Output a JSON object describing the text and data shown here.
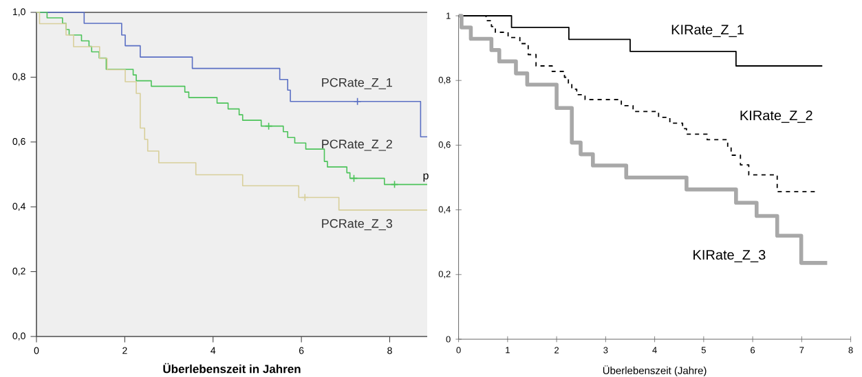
{
  "chart_data": [
    {
      "type": "step",
      "xlabel": "Überlebenszeit in Jahren",
      "xlim": [
        0,
        8.85
      ],
      "ylim": [
        0,
        1
      ],
      "xticks": [
        0,
        2,
        4,
        6,
        8
      ],
      "yticks": [
        {
          "value": 0,
          "label": "0,0"
        },
        {
          "value": 0.2,
          "label": "0,2"
        },
        {
          "value": 0.4,
          "label": "0,4"
        },
        {
          "value": 0.6,
          "label": "0,6"
        },
        {
          "value": 0.8,
          "label": "0,8"
        },
        {
          "value": 1,
          "label": "1,0"
        }
      ],
      "series": [
        {
          "name": "PCRate_Z_1",
          "color": "#5a6fc4",
          "x": [
            0,
            1.08,
            1.93,
            2.01,
            2.35,
            3.53,
            5.51,
            5.69,
            5.75,
            8.7,
            8.85
          ],
          "values": [
            1,
            0.966,
            0.93,
            0.897,
            0.862,
            0.827,
            0.793,
            0.76,
            0.725,
            0.616,
            0.616
          ]
        },
        {
          "name": "PCRate_Z_2",
          "color": "#4cc35a",
          "x": [
            0,
            0.24,
            0.59,
            0.67,
            0.74,
            1.02,
            1.19,
            1.25,
            1.42,
            1.58,
            2.19,
            2.26,
            2.6,
            3.36,
            3.45,
            4.09,
            4.34,
            4.59,
            4.67,
            5.09,
            5.59,
            5.69,
            5.85,
            6.1,
            6.52,
            6.59,
            7.03,
            7.1,
            7.88,
            8.85
          ],
          "values": [
            1,
            0.983,
            0.966,
            0.947,
            0.93,
            0.912,
            0.895,
            0.878,
            0.859,
            0.824,
            0.807,
            0.789,
            0.772,
            0.754,
            0.737,
            0.72,
            0.702,
            0.684,
            0.667,
            0.649,
            0.632,
            0.614,
            0.597,
            0.578,
            0.54,
            0.523,
            0.505,
            0.488,
            0.469,
            0.469
          ]
        },
        {
          "name": "PCRate_Z_3",
          "color": "#d8cf9a",
          "x": [
            0,
            0.07,
            0.67,
            0.84,
            1.43,
            1.6,
            2.01,
            2.26,
            2.35,
            2.45,
            2.52,
            2.77,
            3.61,
            4.67,
            5.94,
            6.85,
            8.85
          ],
          "values": [
            1,
            0.965,
            0.93,
            0.894,
            0.858,
            0.823,
            0.786,
            0.75,
            0.643,
            0.608,
            0.572,
            0.536,
            0.499,
            0.465,
            0.429,
            0.39,
            0.39
          ]
        },
        {
          "type": "scatter",
          "marker": "cross",
          "color": "#5a6fc4",
          "x": [
            7.27
          ],
          "values": [
            0.725
          ]
        },
        {
          "type": "scatter",
          "marker": "cross",
          "color": "#4cc35a",
          "x": [
            5.26,
            7.19,
            8.11
          ],
          "values": [
            0.649,
            0.488,
            0.469
          ]
        },
        {
          "type": "scatter",
          "marker": "cross",
          "color": "#d8cf9a",
          "x": [
            6.08
          ],
          "values": [
            0.429
          ]
        }
      ]
    },
    {
      "type": "step",
      "xlabel": "Überlebenszeit (Jahre)",
      "ylabel": "p",
      "xlim": [
        0,
        8
      ],
      "ylim": [
        0,
        1
      ],
      "xticks": [
        0,
        1,
        2,
        3,
        4,
        5,
        6,
        7,
        8
      ],
      "yticks": [
        0,
        {
          "value": 0.2,
          "label": "0,2"
        },
        {
          "value": 0.4,
          "label": "0,4"
        },
        {
          "value": 0.6,
          "label": "0,6"
        },
        {
          "value": 0.8,
          "label": "0,8"
        },
        1
      ],
      "series": [
        {
          "name": "KIRate_Z_1",
          "color": "#000000",
          "x": [
            0,
            1.08,
            2.25,
            3.5,
            5.66,
            7.42
          ],
          "values": [
            1,
            0.964,
            0.927,
            0.89,
            0.845,
            0.845
          ]
        },
        {
          "name": "KIRate_Z_2",
          "color": "#000000",
          "line_style": "dashed",
          "x": [
            0,
            0.56,
            0.67,
            0.75,
            1.01,
            1.25,
            1.42,
            1.58,
            1.91,
            2.16,
            2.24,
            2.31,
            2.41,
            2.58,
            3.32,
            3.56,
            4.08,
            4.31,
            4.57,
            4.65,
            5.07,
            5.49,
            5.56,
            5.75,
            5.92,
            6.5,
            7.29
          ],
          "values": [
            1,
            0.985,
            0.967,
            0.949,
            0.933,
            0.914,
            0.88,
            0.845,
            0.828,
            0.81,
            0.792,
            0.773,
            0.756,
            0.741,
            0.722,
            0.704,
            0.686,
            0.668,
            0.651,
            0.634,
            0.617,
            0.593,
            0.569,
            0.539,
            0.508,
            0.456,
            0.456
          ]
        },
        {
          "name": "KIRate_Z_3",
          "color": "#a8a8a8",
          "x": [
            0,
            0.06,
            0.25,
            0.67,
            0.83,
            1.17,
            1.4,
            2.0,
            2.31,
            2.49,
            2.74,
            3.42,
            4.65,
            5.66,
            6.08,
            6.5,
            6.99,
            7.52
          ],
          "values": [
            1,
            0.964,
            0.929,
            0.894,
            0.859,
            0.822,
            0.787,
            0.715,
            0.608,
            0.572,
            0.537,
            0.5,
            0.463,
            0.422,
            0.381,
            0.32,
            0.236,
            0.236
          ]
        }
      ]
    }
  ]
}
